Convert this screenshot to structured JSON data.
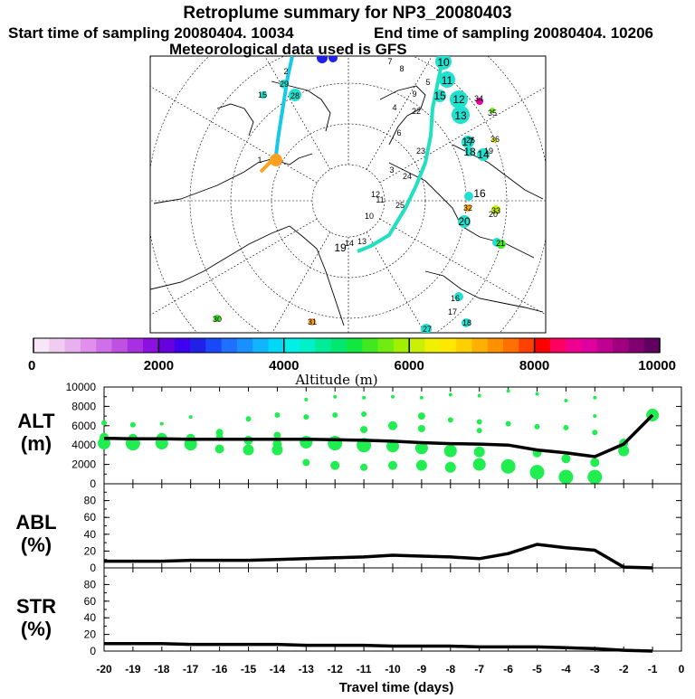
{
  "header": {
    "title": "Retroplume summary for NP3_20080403",
    "start": "Start time of sampling 20080404. 10034",
    "end": "End time of sampling 20080404. 10206",
    "met": "Meteorological data used is GFS"
  },
  "colorbar": {
    "label": "Altitude  (m)",
    "ticks": [
      "0",
      "2000",
      "4000",
      "6000",
      "8000",
      "10000"
    ],
    "colors": [
      "#f6e6f6",
      "#f0ccf0",
      "#e8b0ee",
      "#e090ec",
      "#d070e8",
      "#c050e0",
      "#a830e0",
      "#8c10e0",
      "#6800e0",
      "#4000f0",
      "#2020e8",
      "#1848f8",
      "#2070ff",
      "#1890ff",
      "#10b4ff",
      "#00d8f8",
      "#00f0e8",
      "#00f0c8",
      "#00ec98",
      "#00e870",
      "#10e840",
      "#40e820",
      "#70ec10",
      "#a0f000",
      "#c8f000",
      "#f0f000",
      "#ffe800",
      "#ffd000",
      "#ffb000",
      "#ff9000",
      "#ff7000",
      "#ff4000",
      "#ff0000",
      "#ff0060",
      "#f00090",
      "#e000a0",
      "#c00090",
      "#a00080",
      "#800070",
      "#600060"
    ]
  },
  "map": {
    "labels": [
      "10",
      "11",
      "12",
      "13",
      "15",
      "17",
      "18",
      "14",
      "16",
      "20",
      "19",
      "9",
      "7",
      "8",
      "5",
      "6",
      "4",
      "3",
      "2",
      "1",
      "10",
      "11",
      "12",
      "13",
      "14",
      "15",
      "16",
      "17",
      "18",
      "19",
      "20",
      "21",
      "22",
      "23",
      "24",
      "25",
      "26",
      "27",
      "28",
      "29",
      "30",
      "31",
      "32",
      "33",
      "34",
      "35",
      "36"
    ]
  },
  "chart_data": [
    {
      "type": "scatter+line",
      "name": "ALT",
      "ylabel": [
        "ALT",
        "(m)"
      ],
      "ylim": [
        0,
        10000
      ],
      "yticks": [
        "10000",
        "8000",
        "6000",
        "4000",
        "2000",
        "0"
      ],
      "line": {
        "x": [
          -20,
          -19,
          -18,
          -17,
          -16,
          -15,
          -14,
          -13,
          -12,
          -11,
          -10,
          -9,
          -8,
          -7,
          -6,
          -5,
          -4,
          -3,
          -2,
          -1
        ],
        "y": [
          4700,
          4650,
          4650,
          4600,
          4600,
          4600,
          4600,
          4600,
          4550,
          4500,
          4400,
          4250,
          4150,
          4100,
          4000,
          3500,
          3200,
          2800,
          4100,
          7100
        ]
      },
      "points": [
        {
          "x": -20,
          "y": 6300,
          "s": 3
        },
        {
          "x": -20,
          "y": 4800,
          "s": 5
        },
        {
          "x": -20,
          "y": 4200,
          "s": 7
        },
        {
          "x": -19,
          "y": 6100,
          "s": 3
        },
        {
          "x": -19,
          "y": 4700,
          "s": 5
        },
        {
          "x": -19,
          "y": 4200,
          "s": 8
        },
        {
          "x": -18,
          "y": 6200,
          "s": 2
        },
        {
          "x": -18,
          "y": 4700,
          "s": 6
        },
        {
          "x": -18,
          "y": 4200,
          "s": 7
        },
        {
          "x": -17,
          "y": 6900,
          "s": 2
        },
        {
          "x": -17,
          "y": 4700,
          "s": 5
        },
        {
          "x": -17,
          "y": 4100,
          "s": 7
        },
        {
          "x": -16,
          "y": 5300,
          "s": 4
        },
        {
          "x": -16,
          "y": 4800,
          "s": 4
        },
        {
          "x": -16,
          "y": 3600,
          "s": 5
        },
        {
          "x": -15,
          "y": 6700,
          "s": 3
        },
        {
          "x": -15,
          "y": 4500,
          "s": 5
        },
        {
          "x": -15,
          "y": 3500,
          "s": 6
        },
        {
          "x": -14,
          "y": 7100,
          "s": 3
        },
        {
          "x": -14,
          "y": 5000,
          "s": 4
        },
        {
          "x": -14,
          "y": 4100,
          "s": 5
        },
        {
          "x": -14,
          "y": 3500,
          "s": 6
        },
        {
          "x": -13,
          "y": 8700,
          "s": 2
        },
        {
          "x": -13,
          "y": 6900,
          "s": 3
        },
        {
          "x": -13,
          "y": 4300,
          "s": 7
        },
        {
          "x": -13,
          "y": 2200,
          "s": 4
        },
        {
          "x": -12,
          "y": 9000,
          "s": 2
        },
        {
          "x": -12,
          "y": 7100,
          "s": 3
        },
        {
          "x": -12,
          "y": 4200,
          "s": 8
        },
        {
          "x": -12,
          "y": 1900,
          "s": 5
        },
        {
          "x": -11,
          "y": 8900,
          "s": 2
        },
        {
          "x": -11,
          "y": 7200,
          "s": 3
        },
        {
          "x": -11,
          "y": 5600,
          "s": 4
        },
        {
          "x": -11,
          "y": 4000,
          "s": 8
        },
        {
          "x": -11,
          "y": 1700,
          "s": 4
        },
        {
          "x": -10,
          "y": 9000,
          "s": 2
        },
        {
          "x": -10,
          "y": 6000,
          "s": 5
        },
        {
          "x": -10,
          "y": 3900,
          "s": 7
        },
        {
          "x": -10,
          "y": 1900,
          "s": 5
        },
        {
          "x": -9,
          "y": 8900,
          "s": 2
        },
        {
          "x": -9,
          "y": 7000,
          "s": 4
        },
        {
          "x": -9,
          "y": 5700,
          "s": 4
        },
        {
          "x": -9,
          "y": 3700,
          "s": 7
        },
        {
          "x": -9,
          "y": 1900,
          "s": 6
        },
        {
          "x": -8,
          "y": 9200,
          "s": 2
        },
        {
          "x": -8,
          "y": 6600,
          "s": 3
        },
        {
          "x": -8,
          "y": 3400,
          "s": 7
        },
        {
          "x": -8,
          "y": 1700,
          "s": 6
        },
        {
          "x": -7,
          "y": 9100,
          "s": 2
        },
        {
          "x": -7,
          "y": 6400,
          "s": 3
        },
        {
          "x": -7,
          "y": 5500,
          "s": 3
        },
        {
          "x": -7,
          "y": 3300,
          "s": 6
        },
        {
          "x": -7,
          "y": 2000,
          "s": 7
        },
        {
          "x": -6,
          "y": 9600,
          "s": 2
        },
        {
          "x": -6,
          "y": 6200,
          "s": 3
        },
        {
          "x": -6,
          "y": 1800,
          "s": 8
        },
        {
          "x": -5,
          "y": 9300,
          "s": 2
        },
        {
          "x": -5,
          "y": 5900,
          "s": 3
        },
        {
          "x": -5,
          "y": 3200,
          "s": 5
        },
        {
          "x": -5,
          "y": 1200,
          "s": 8
        },
        {
          "x": -4,
          "y": 8600,
          "s": 2
        },
        {
          "x": -4,
          "y": 5800,
          "s": 3
        },
        {
          "x": -4,
          "y": 2600,
          "s": 5
        },
        {
          "x": -4,
          "y": 700,
          "s": 8
        },
        {
          "x": -3,
          "y": 8900,
          "s": 2
        },
        {
          "x": -3,
          "y": 7000,
          "s": 2
        },
        {
          "x": -3,
          "y": 5300,
          "s": 3
        },
        {
          "x": -3,
          "y": 2200,
          "s": 5
        },
        {
          "x": -3,
          "y": 700,
          "s": 8
        },
        {
          "x": -2,
          "y": 4200,
          "s": 5
        },
        {
          "x": -2,
          "y": 3400,
          "s": 6
        },
        {
          "x": -1,
          "y": 7100,
          "s": 7
        }
      ]
    },
    {
      "type": "line",
      "name": "ABL",
      "ylabel": [
        "ABL",
        "(%)"
      ],
      "ylim": [
        0,
        100
      ],
      "yticks": [
        "80",
        "60",
        "40",
        "20",
        "0"
      ],
      "x": [
        -20,
        -19,
        -18,
        -17,
        -16,
        -15,
        -14,
        -13,
        -12,
        -11,
        -10,
        -9,
        -8,
        -7,
        -6,
        -5,
        -4,
        -3,
        -2,
        -1
      ],
      "y": [
        8,
        8,
        8,
        9,
        9,
        9,
        10,
        11,
        12,
        13,
        15,
        14,
        13,
        11,
        17,
        28,
        24,
        21,
        1,
        0
      ]
    },
    {
      "type": "line",
      "name": "STR",
      "ylabel": [
        "STR",
        "(%)"
      ],
      "ylim": [
        0,
        100
      ],
      "yticks": [
        "80",
        "60",
        "40",
        "20",
        "0"
      ],
      "x": [
        -20,
        -19,
        -18,
        -17,
        -16,
        -15,
        -14,
        -13,
        -12,
        -11,
        -10,
        -9,
        -8,
        -7,
        -6,
        -5,
        -4,
        -3,
        -2,
        -1
      ],
      "y": [
        9,
        9,
        9,
        8,
        8,
        8,
        8,
        7,
        7,
        7,
        6,
        6,
        6,
        5,
        5,
        5,
        4,
        3,
        1,
        0
      ],
      "xlabel": "Travel time (days)",
      "xticks": [
        "-20",
        "-19",
        "-18",
        "-17",
        "-16",
        "-15",
        "-14",
        "-13",
        "-12",
        "-11",
        "-10",
        "-9",
        "-8",
        "-7",
        "-6",
        "-5",
        "-4",
        "-3",
        "-2",
        "-1",
        "0"
      ]
    }
  ]
}
